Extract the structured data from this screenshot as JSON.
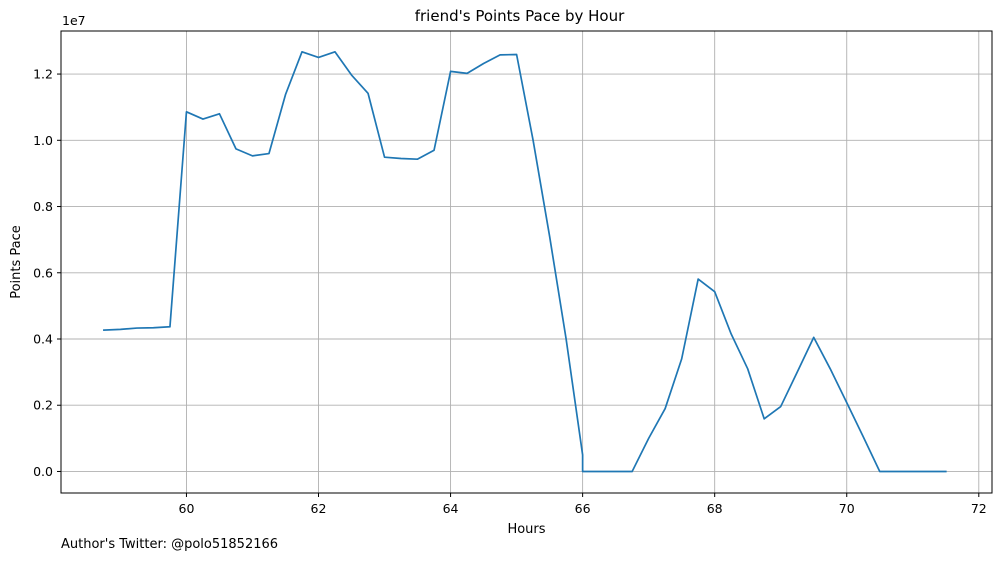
{
  "chart_data": {
    "type": "line",
    "title": "friend's Points Pace by Hour",
    "xlabel": "Hours",
    "ylabel": "Points Pace",
    "offset_label": "1e7",
    "xlim": [
      58.1,
      72.2
    ],
    "ylim": [
      -650000,
      13300000
    ],
    "grid": true,
    "line_color": "#1f77b4",
    "x_ticks": [
      60,
      62,
      64,
      66,
      68,
      70,
      72
    ],
    "x_tick_labels": [
      "60",
      "62",
      "64",
      "66",
      "68",
      "70",
      "72"
    ],
    "y_ticks": [
      0,
      2000000,
      4000000,
      6000000,
      8000000,
      10000000,
      12000000
    ],
    "y_tick_labels": [
      "0.0",
      "0.2",
      "0.4",
      "0.6",
      "0.8",
      "1.0",
      "1.2"
    ],
    "series": [
      {
        "x": [
          58.75,
          59.0,
          59.25,
          59.5,
          59.75,
          60.0,
          60.25,
          60.5,
          60.75,
          61.0,
          61.25,
          61.5,
          61.75,
          62.0,
          62.25,
          62.5,
          62.75,
          63.0,
          63.25,
          63.5,
          63.75,
          64.0,
          64.25,
          64.5,
          64.75,
          65.0,
          65.25,
          65.5,
          65.75,
          66.0,
          66.0,
          66.25,
          66.5,
          66.75,
          67.0,
          67.25,
          67.5,
          67.75,
          68.0,
          68.25,
          68.5,
          68.75,
          69.0,
          69.25,
          69.5,
          69.75,
          70.0,
          70.25,
          70.5,
          70.75,
          71.0,
          71.25,
          71.5
        ],
        "y": [
          4270000,
          4290000,
          4330000,
          4340000,
          4370000,
          10860000,
          10640000,
          10800000,
          9740000,
          9530000,
          9600000,
          11380000,
          12670000,
          12500000,
          12670000,
          11970000,
          11420000,
          9490000,
          9450000,
          9430000,
          9700000,
          12080000,
          12020000,
          12320000,
          12580000,
          12590000,
          10000000,
          7100000,
          4000000,
          500000,
          0,
          0,
          0,
          0,
          1000000,
          1900000,
          3400000,
          5810000,
          5430000,
          4150000,
          3100000,
          1590000,
          1960000,
          3000000,
          4050000,
          3100000,
          2080000,
          1050000,
          0,
          0,
          0,
          0,
          0
        ]
      }
    ]
  },
  "footer": {
    "text": "Author's Twitter: @polo51852166"
  }
}
